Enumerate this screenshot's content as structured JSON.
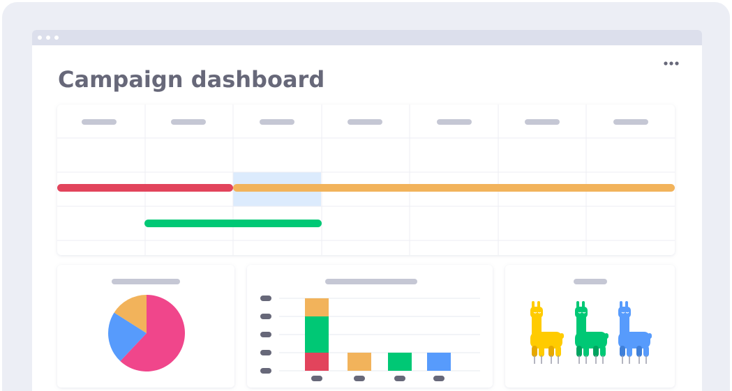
{
  "header": {
    "title": "Campaign dashboard"
  },
  "pie": {
    "values": [
      62,
      22,
      16
    ],
    "colors": [
      "#f0468b",
      "#579bfc",
      "#f2b35b"
    ]
  },
  "bars": {
    "ylim": [
      0,
      4
    ],
    "stacks": [
      [
        {
          "value": 1,
          "color": "#e2445c"
        },
        {
          "value": 2,
          "color": "#00c875"
        },
        {
          "value": 1,
          "color": "#f2b35b"
        }
      ],
      [
        {
          "value": 1,
          "color": "#f2b35b"
        }
      ],
      [
        {
          "value": 1,
          "color": "#00c875"
        }
      ],
      [
        {
          "value": 1,
          "color": "#579bfc"
        }
      ]
    ]
  }
}
